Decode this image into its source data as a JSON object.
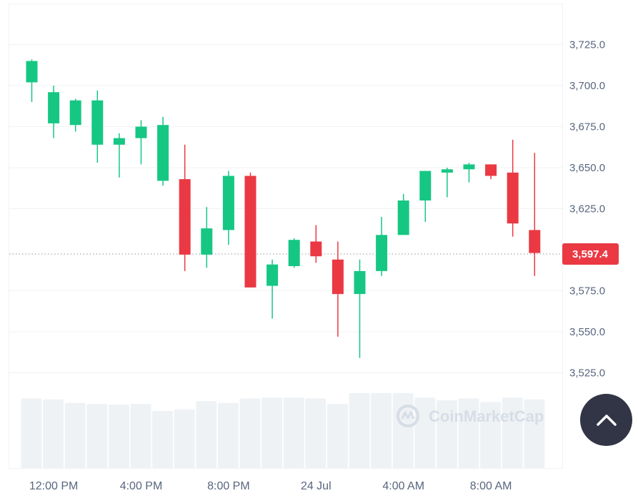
{
  "chart_data": {
    "type": "candlestick",
    "y_ticks": [
      "3,725.0",
      "3,700.0",
      "3,675.0",
      "3,650.0",
      "3,625.0",
      "3,575.0",
      "3,550.0",
      "3,525.0"
    ],
    "y_tick_values": [
      3725,
      3700,
      3675,
      3650,
      3625,
      3575,
      3550,
      3525
    ],
    "x_ticks": [
      "12:00 PM",
      "4:00 PM",
      "8:00 PM",
      "24 Jul",
      "4:00 AM",
      "8:00 AM"
    ],
    "current_price_label": "3,597.4",
    "current_price": 3597.4,
    "grid": true,
    "colors": {
      "up": "#16c784",
      "down": "#ea3943",
      "volume": "#eff2f5",
      "axis_text": "#58667e"
    },
    "candles": [
      {
        "o": 3702,
        "h": 3716,
        "l": 3690,
        "c": 3715,
        "vol": 0.78
      },
      {
        "o": 3677,
        "h": 3700,
        "l": 3668,
        "c": 3696,
        "vol": 0.77
      },
      {
        "o": 3676,
        "h": 3692,
        "l": 3672,
        "c": 3691,
        "vol": 0.73
      },
      {
        "o": 3664,
        "h": 3697,
        "l": 3653,
        "c": 3691,
        "vol": 0.72
      },
      {
        "o": 3664,
        "h": 3671,
        "l": 3644,
        "c": 3668,
        "vol": 0.71
      },
      {
        "o": 3668,
        "h": 3679,
        "l": 3652,
        "c": 3675,
        "vol": 0.72
      },
      {
        "o": 3642,
        "h": 3681,
        "l": 3639,
        "c": 3676,
        "vol": 0.64
      },
      {
        "o": 3643,
        "h": 3664,
        "l": 3587,
        "c": 3597,
        "vol": 0.66
      },
      {
        "o": 3597,
        "h": 3626,
        "l": 3589,
        "c": 3613,
        "vol": 0.75
      },
      {
        "o": 3612,
        "h": 3648,
        "l": 3603,
        "c": 3645,
        "vol": 0.73
      },
      {
        "o": 3645,
        "h": 3647,
        "l": 3577,
        "c": 3577,
        "vol": 0.78
      },
      {
        "o": 3578,
        "h": 3594,
        "l": 3558,
        "c": 3591,
        "vol": 0.79
      },
      {
        "o": 3590,
        "h": 3607,
        "l": 3589,
        "c": 3606,
        "vol": 0.79
      },
      {
        "o": 3605,
        "h": 3615,
        "l": 3592,
        "c": 3596,
        "vol": 0.78
      },
      {
        "o": 3594,
        "h": 3605,
        "l": 3547,
        "c": 3573,
        "vol": 0.72
      },
      {
        "o": 3573,
        "h": 3594,
        "l": 3534,
        "c": 3587,
        "vol": 0.84
      },
      {
        "o": 3587,
        "h": 3620,
        "l": 3584,
        "c": 3609,
        "vol": 0.84
      },
      {
        "o": 3609,
        "h": 3634,
        "l": 3609,
        "c": 3630,
        "vol": 0.84
      },
      {
        "o": 3630,
        "h": 3648,
        "l": 3617,
        "c": 3648,
        "vol": 0.79
      },
      {
        "o": 3647,
        "h": 3650,
        "l": 3632,
        "c": 3649,
        "vol": 0.76
      },
      {
        "o": 3649,
        "h": 3653,
        "l": 3641,
        "c": 3652,
        "vol": 0.78
      },
      {
        "o": 3652,
        "h": 3652,
        "l": 3643,
        "c": 3645,
        "vol": 0.74
      },
      {
        "o": 3647,
        "h": 3667,
        "l": 3608,
        "c": 3616,
        "vol": 0.79
      },
      {
        "o": 3612,
        "h": 3659,
        "l": 3584,
        "c": 3598,
        "vol": 0.77
      }
    ]
  },
  "watermark": {
    "text": "CoinMarketCap"
  },
  "scroll_top_button": {
    "icon": "chevron-up-icon"
  }
}
